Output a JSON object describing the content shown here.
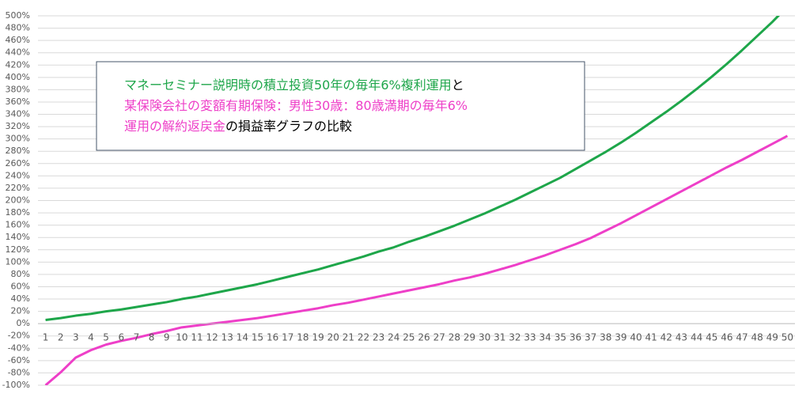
{
  "chart_data": {
    "type": "line",
    "title_lines": [
      [
        {
          "text": "マネーセミナー説明時の積立投資50年の毎年6%複利運用",
          "color": "#1ea64a"
        },
        {
          "text": "と",
          "color": "#000000"
        }
      ],
      [
        {
          "text": "某保険会社の変額有期保険：男性30歳：80歳満期の毎年6%",
          "color": "#ee3fc8"
        }
      ],
      [
        {
          "text": "運用の解約返戻金",
          "color": "#ee3fc8"
        },
        {
          "text": "の損益率グラフの比較",
          "color": "#000000"
        }
      ]
    ],
    "categories": [
      "1",
      "2",
      "3",
      "4",
      "5",
      "6",
      "7",
      "8",
      "9",
      "10",
      "11",
      "12",
      "13",
      "14",
      "15",
      "16",
      "17",
      "18",
      "19",
      "20",
      "21",
      "22",
      "23",
      "24",
      "25",
      "26",
      "27",
      "28",
      "29",
      "30",
      "31",
      "32",
      "33",
      "34",
      "35",
      "36",
      "37",
      "38",
      "39",
      "40",
      "41",
      "42",
      "43",
      "44",
      "45",
      "46",
      "47",
      "48",
      "49",
      "50"
    ],
    "series": [
      {
        "color": "#1ea64a",
        "values": [
          6,
          9,
          13,
          16,
          20,
          23,
          27,
          31,
          35,
          40,
          44,
          49,
          54,
          59,
          64,
          70,
          76,
          82,
          88,
          95,
          102,
          109,
          117,
          124,
          133,
          141,
          150,
          159,
          169,
          179,
          190,
          201,
          213,
          225,
          237,
          251,
          265,
          279,
          294,
          310,
          327,
          344,
          362,
          381,
          401,
          422,
          444,
          467,
          490,
          515
        ]
      },
      {
        "color": "#ee3fc8",
        "values": [
          -100,
          -79,
          -55,
          -43,
          -34,
          -28,
          -23,
          -17,
          -12,
          -6,
          -3,
          0,
          3,
          6,
          9,
          13,
          17,
          21,
          25,
          30,
          34,
          39,
          44,
          49,
          54,
          59,
          64,
          70,
          75,
          81,
          88,
          95,
          103,
          111,
          120,
          129,
          139,
          151,
          163,
          176,
          189,
          202,
          215,
          228,
          241,
          254,
          266,
          279,
          292,
          305
        ]
      }
    ],
    "ylim": [
      -100,
      500
    ],
    "yticks": [
      {
        "value": -100,
        "label": "-100%"
      },
      {
        "value": -80,
        "label": "-80%"
      },
      {
        "value": -60,
        "label": "-60%"
      },
      {
        "value": -40,
        "label": "-40%"
      },
      {
        "value": -20,
        "label": "-20%"
      },
      {
        "value": 0,
        "label": "0%"
      },
      {
        "value": 20,
        "label": "20%"
      },
      {
        "value": 40,
        "label": "40%"
      },
      {
        "value": 60,
        "label": "60%"
      },
      {
        "value": 80,
        "label": "80%"
      },
      {
        "value": 100,
        "label": "100%"
      },
      {
        "value": 120,
        "label": "120%"
      },
      {
        "value": 140,
        "label": "140%"
      },
      {
        "value": 160,
        "label": "160%"
      },
      {
        "value": 180,
        "label": "180%"
      },
      {
        "value": 200,
        "label": "200%"
      },
      {
        "value": 220,
        "label": "220%"
      },
      {
        "value": 240,
        "label": "240%"
      },
      {
        "value": 260,
        "label": "260%"
      },
      {
        "value": 280,
        "label": "280%"
      },
      {
        "value": 300,
        "label": "300%"
      },
      {
        "value": 320,
        "label": "320%"
      },
      {
        "value": 340,
        "label": "340%"
      },
      {
        "value": 360,
        "label": "360%"
      },
      {
        "value": 380,
        "label": "380%"
      },
      {
        "value": 400,
        "label": "400%"
      },
      {
        "value": 420,
        "label": "420%"
      },
      {
        "value": 440,
        "label": "440%"
      },
      {
        "value": 460,
        "label": "460%"
      },
      {
        "value": 480,
        "label": "480%"
      },
      {
        "value": 500,
        "label": "500%"
      }
    ],
    "grid": true
  }
}
